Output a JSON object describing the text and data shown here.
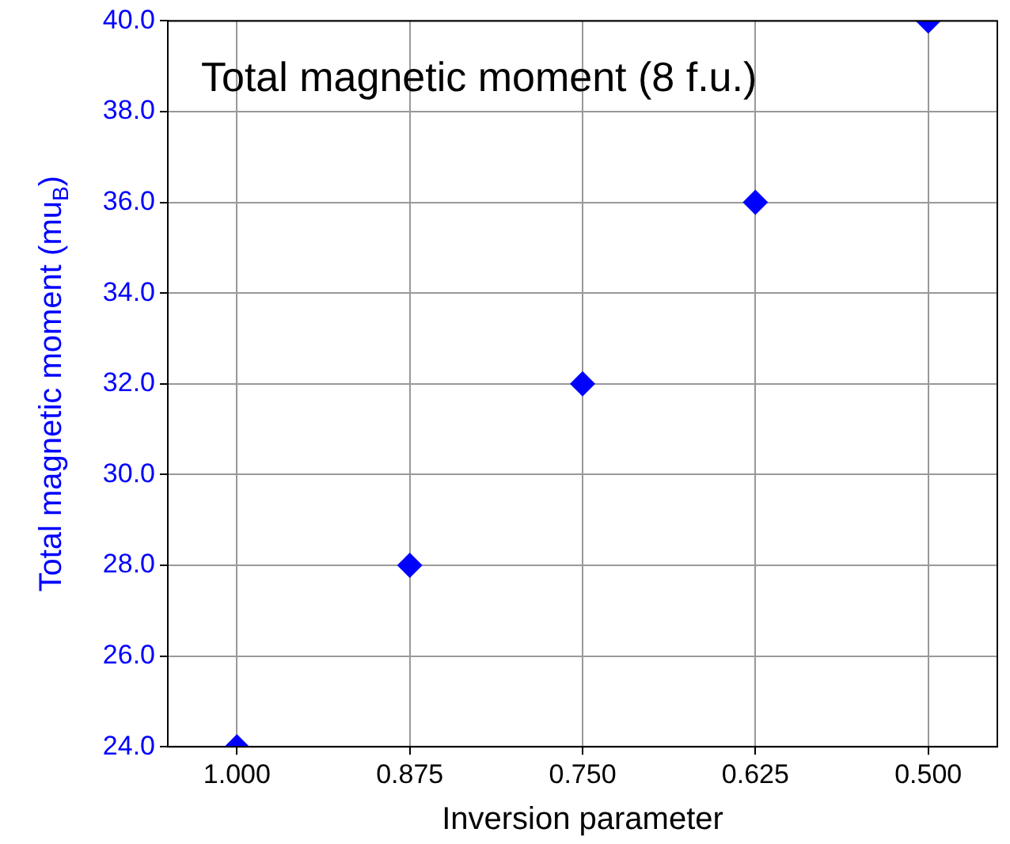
{
  "chart_data": {
    "type": "scatter",
    "title": "Total magnetic moment (8 f.u.)",
    "xlabel": "Inversion parameter",
    "ylabel": "Total magnetic moment (mu$_{B}$)",
    "x": [
      1.0,
      0.875,
      0.75,
      0.625,
      0.5
    ],
    "series": [
      {
        "color": "#0000ff",
        "values": [
          24,
          28,
          32,
          36,
          40
        ]
      }
    ],
    "xlim": [
      1.05,
      0.45
    ],
    "xticks": [
      {
        "value": 1.0,
        "label": "1.000"
      },
      {
        "value": 0.875,
        "label": "0.875"
      },
      {
        "value": 0.75,
        "label": "0.750"
      },
      {
        "value": 0.625,
        "label": "0.625"
      },
      {
        "value": 0.5,
        "label": "0.500"
      }
    ],
    "ylim": [
      24,
      40
    ],
    "yticks": [
      {
        "value": 24,
        "label": "24.0"
      },
      {
        "value": 26,
        "label": "26.0"
      },
      {
        "value": 28,
        "label": "28.0"
      },
      {
        "value": 30,
        "label": "30.0"
      },
      {
        "value": 32,
        "label": "32.0"
      },
      {
        "value": 34,
        "label": "34.0"
      },
      {
        "value": 36,
        "label": "36.0"
      },
      {
        "value": 38,
        "label": "38.0"
      },
      {
        "value": 40,
        "label": "40.0"
      }
    ],
    "grid": true,
    "legend": false,
    "marker": "diamond"
  }
}
